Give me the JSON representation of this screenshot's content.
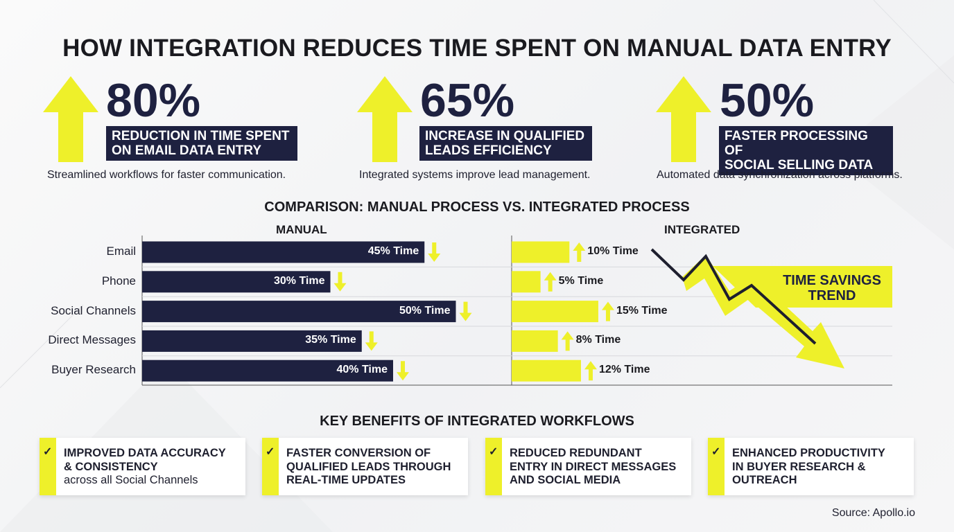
{
  "title": "HOW INTEGRATION REDUCES TIME SPENT ON MANUAL DATA ENTRY",
  "colors": {
    "navy": "#1e2140",
    "yellow": "#eef02a",
    "text": "#1e1f2e"
  },
  "kpis": [
    {
      "value": "80%",
      "label": "REDUCTION IN TIME SPENT\nON EMAIL DATA ENTRY",
      "description": "Streamlined workflows for faster communication.",
      "icon": "up-arrow-icon"
    },
    {
      "value": "65%",
      "label": "INCREASE IN QUALIFIED\nLEADS EFFICIENCY",
      "description": "Integrated systems improve lead management.",
      "icon": "up-arrow-icon"
    },
    {
      "value": "50%",
      "label": "FASTER PROCESSING OF\nSOCIAL SELLING DATA",
      "description": "Automated data synchronization across platforms.",
      "icon": "up-arrow-icon"
    }
  ],
  "chart_data": {
    "type": "bar",
    "title": "COMPARISON: MANUAL PROCESS VS. INTEGRATED PROCESS",
    "categories": [
      "Email",
      "Phone",
      "Social Channels",
      "Direct Messages",
      "Buyer Research"
    ],
    "series": [
      {
        "name": "MANUAL",
        "values": [
          45,
          30,
          50,
          35,
          40
        ],
        "labels": [
          "45% Time",
          "30% Time",
          "50% Time",
          "35% Time",
          "40% Time"
        ],
        "color": "#1e2140",
        "marker": "down-arrow-icon"
      },
      {
        "name": "INTEGRATED",
        "values": [
          10,
          5,
          15,
          8,
          12
        ],
        "labels": [
          "10% Time",
          "5% Time",
          "15% Time",
          "8% Time",
          "12% Time"
        ],
        "color": "#eef02a",
        "marker": "up-arrow-icon"
      }
    ],
    "unit": "% Time",
    "orientation": "horizontal",
    "grid": true,
    "annotation": "TIME SAVINGS\nTREND"
  },
  "benefits": {
    "title": "KEY BENEFITS OF INTEGRATED WORKFLOWS",
    "items": [
      {
        "bold": "IMPROVED DATA ACCURACY\n& CONSISTENCY",
        "normal": "across all Social Channels",
        "icon": "check-icon"
      },
      {
        "bold": "FASTER CONVERSION OF\nQUALIFIED LEADS THROUGH\nREAL-TIME UPDATES",
        "normal": "",
        "icon": "check-icon"
      },
      {
        "bold": "REDUCED REDUNDANT\nENTRY IN DIRECT MESSAGES\nAND SOCIAL MEDIA",
        "normal": "",
        "icon": "check-icon"
      },
      {
        "bold": "ENHANCED PRODUCTIVITY\nIN BUYER RESEARCH &\nOUTREACH",
        "normal": "",
        "icon": "check-icon"
      }
    ]
  },
  "source": "Source: Apollo.io"
}
